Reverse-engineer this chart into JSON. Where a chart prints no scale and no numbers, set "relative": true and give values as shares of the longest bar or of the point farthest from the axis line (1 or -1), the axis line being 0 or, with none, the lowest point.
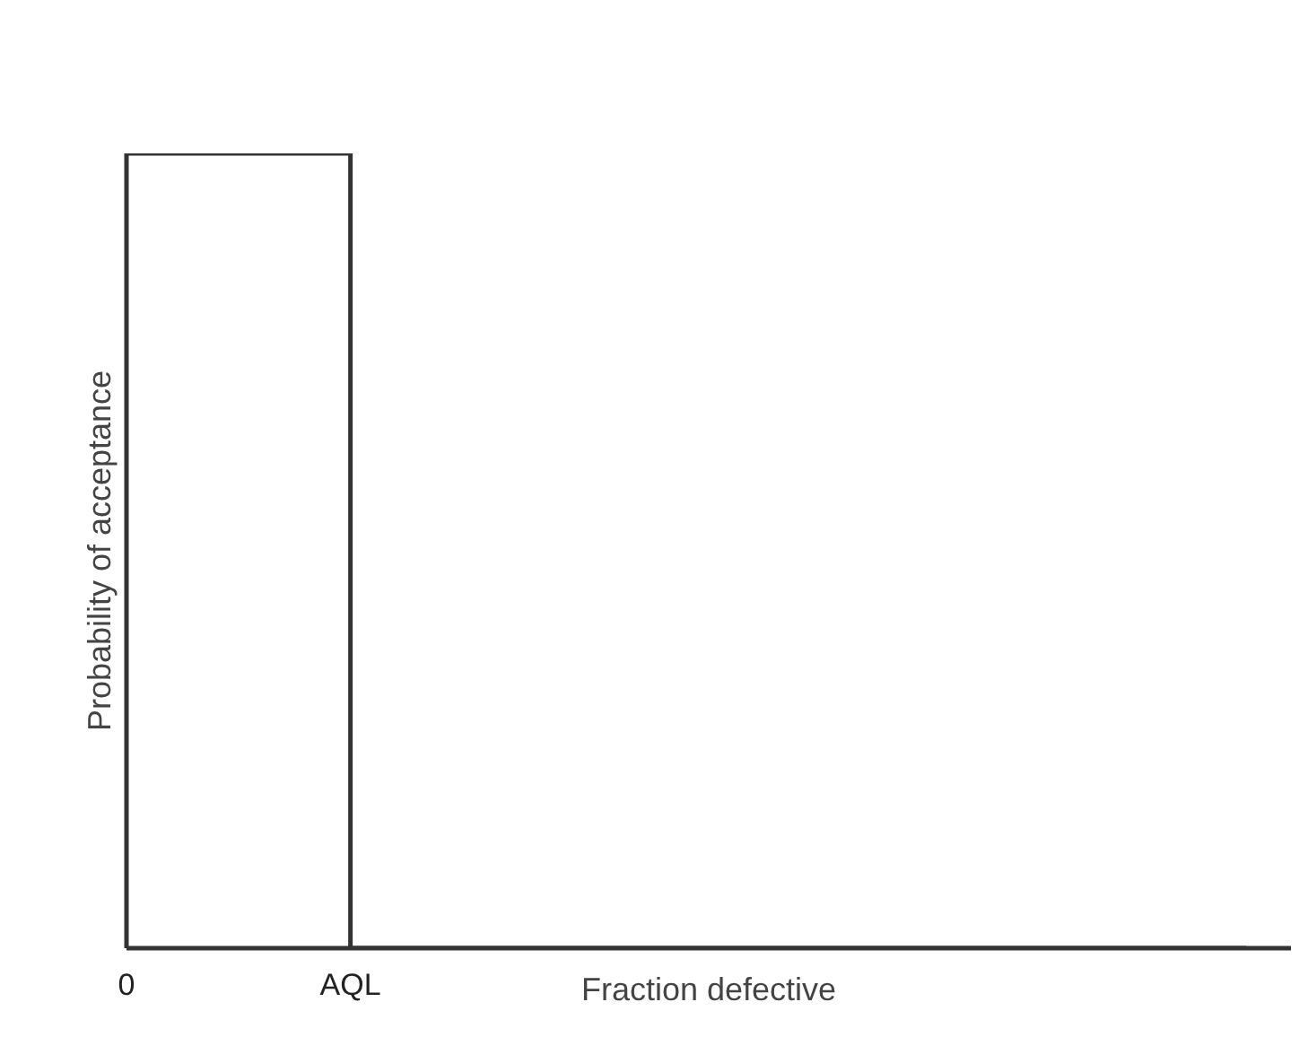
{
  "chart_data": {
    "type": "step",
    "xlabel": "Fraction defective",
    "ylabel": "Probability of acceptance",
    "relative": true,
    "categories": [
      "0",
      "AQL",
      null,
      null,
      null,
      null
    ],
    "values": [
      1,
      0,
      0,
      0,
      0,
      0
    ],
    "color": "#333333",
    "marker": "none",
    "line_style": "solid"
  }
}
